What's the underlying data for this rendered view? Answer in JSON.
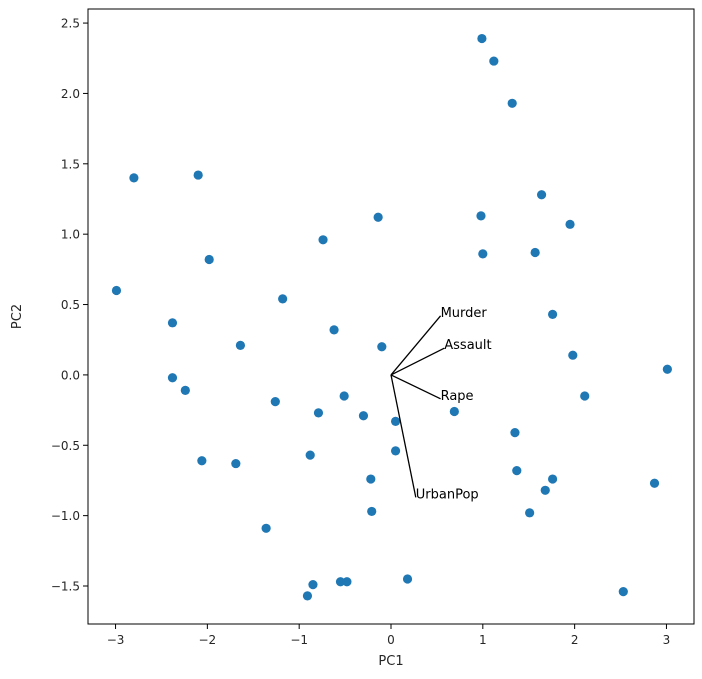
{
  "chart_data": {
    "type": "scatter",
    "title": "",
    "xlabel": "PC1",
    "ylabel": "PC2",
    "xlim": [
      -3.3,
      3.3
    ],
    "ylim": [
      -1.77,
      2.6
    ],
    "grid": false,
    "marker_color": "#1f77b4",
    "loading_color": "#000000",
    "x_ticks": [
      -3,
      -2,
      -1,
      0,
      1,
      2,
      3
    ],
    "x_tick_labels": [
      "−3",
      "−2",
      "−1",
      "0",
      "1",
      "2",
      "3"
    ],
    "y_ticks": [
      -1.5,
      -1.0,
      -0.5,
      0.0,
      0.5,
      1.0,
      1.5,
      2.0,
      2.5
    ],
    "y_tick_labels": [
      "−1.5",
      "−1.0",
      "−0.5",
      "0.0",
      "0.5",
      "1.0",
      "1.5",
      "2.0",
      "2.5"
    ],
    "points": [
      {
        "x": 0.99,
        "y": 2.39
      },
      {
        "x": 1.12,
        "y": 2.23
      },
      {
        "x": 1.32,
        "y": 1.93
      },
      {
        "x": -2.8,
        "y": 1.4
      },
      {
        "x": -2.1,
        "y": 1.42
      },
      {
        "x": 1.64,
        "y": 1.28
      },
      {
        "x": 0.98,
        "y": 1.13
      },
      {
        "x": -0.14,
        "y": 1.12
      },
      {
        "x": 1.95,
        "y": 1.07
      },
      {
        "x": -0.74,
        "y": 0.96
      },
      {
        "x": 1.57,
        "y": 0.87
      },
      {
        "x": 1.0,
        "y": 0.86
      },
      {
        "x": -1.98,
        "y": 0.82
      },
      {
        "x": -2.99,
        "y": 0.6
      },
      {
        "x": -1.18,
        "y": 0.54
      },
      {
        "x": 1.76,
        "y": 0.43
      },
      {
        "x": -2.38,
        "y": 0.37
      },
      {
        "x": -0.62,
        "y": 0.32
      },
      {
        "x": -1.64,
        "y": 0.21
      },
      {
        "x": -0.1,
        "y": 0.2
      },
      {
        "x": 1.98,
        "y": 0.14
      },
      {
        "x": 3.01,
        "y": 0.04
      },
      {
        "x": -2.38,
        "y": -0.02
      },
      {
        "x": -2.24,
        "y": -0.11
      },
      {
        "x": -0.51,
        "y": -0.15
      },
      {
        "x": 2.11,
        "y": -0.15
      },
      {
        "x": -1.26,
        "y": -0.19
      },
      {
        "x": 0.69,
        "y": -0.26
      },
      {
        "x": -0.79,
        "y": -0.27
      },
      {
        "x": -0.3,
        "y": -0.29
      },
      {
        "x": 0.05,
        "y": -0.33
      },
      {
        "x": 1.35,
        "y": -0.41
      },
      {
        "x": 0.05,
        "y": -0.54
      },
      {
        "x": -0.88,
        "y": -0.57
      },
      {
        "x": -2.06,
        "y": -0.61
      },
      {
        "x": -1.69,
        "y": -0.63
      },
      {
        "x": 1.37,
        "y": -0.68
      },
      {
        "x": -0.22,
        "y": -0.74
      },
      {
        "x": 1.76,
        "y": -0.74
      },
      {
        "x": 2.87,
        "y": -0.77
      },
      {
        "x": 1.68,
        "y": -0.82
      },
      {
        "x": -0.21,
        "y": -0.97
      },
      {
        "x": 1.51,
        "y": -0.98
      },
      {
        "x": -1.36,
        "y": -1.09
      },
      {
        "x": 0.18,
        "y": -1.45
      },
      {
        "x": -0.55,
        "y": -1.47
      },
      {
        "x": -0.48,
        "y": -1.47
      },
      {
        "x": -0.85,
        "y": -1.49
      },
      {
        "x": 2.53,
        "y": -1.54
      },
      {
        "x": -0.91,
        "y": -1.57
      }
    ],
    "loadings": [
      {
        "name": "Murder",
        "x": 0.54,
        "y": 0.42
      },
      {
        "name": "Assault",
        "x": 0.58,
        "y": 0.19
      },
      {
        "name": "Rape",
        "x": 0.54,
        "y": -0.17
      },
      {
        "name": "UrbanPop",
        "x": 0.27,
        "y": -0.87
      }
    ]
  }
}
